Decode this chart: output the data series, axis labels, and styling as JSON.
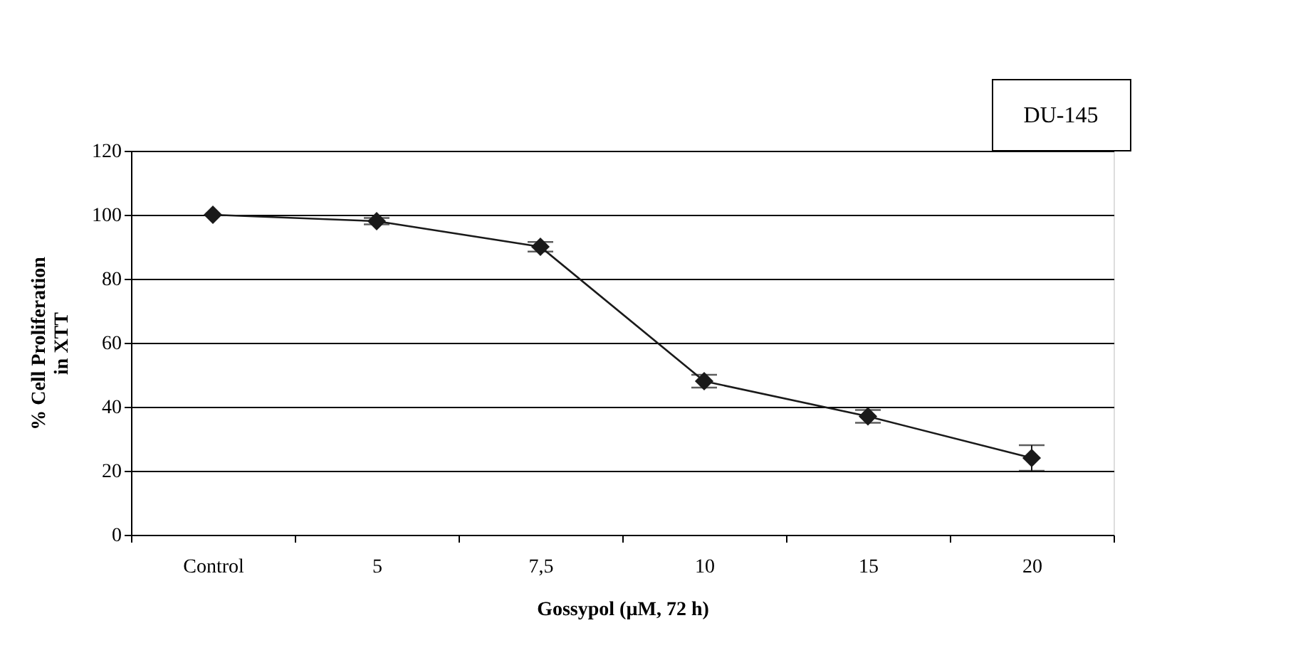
{
  "chart_data": {
    "type": "line",
    "categories": [
      "Control",
      "5",
      "7,5",
      "10",
      "15",
      "20"
    ],
    "values": [
      100,
      98,
      90,
      48,
      37,
      24
    ],
    "errors": [
      null,
      1,
      1.5,
      2,
      2,
      4
    ],
    "color": "#1a1a1a",
    "marker": "diamond",
    "xlabel": "Gossypol (µM, 72 h)",
    "ylabel": "% Cell Proliferation\nin XTT",
    "ylim": [
      0,
      120
    ],
    "yticks": [
      0,
      20,
      40,
      60,
      80,
      100,
      120
    ],
    "grid": "y",
    "annotations": [
      "DU-145"
    ]
  }
}
